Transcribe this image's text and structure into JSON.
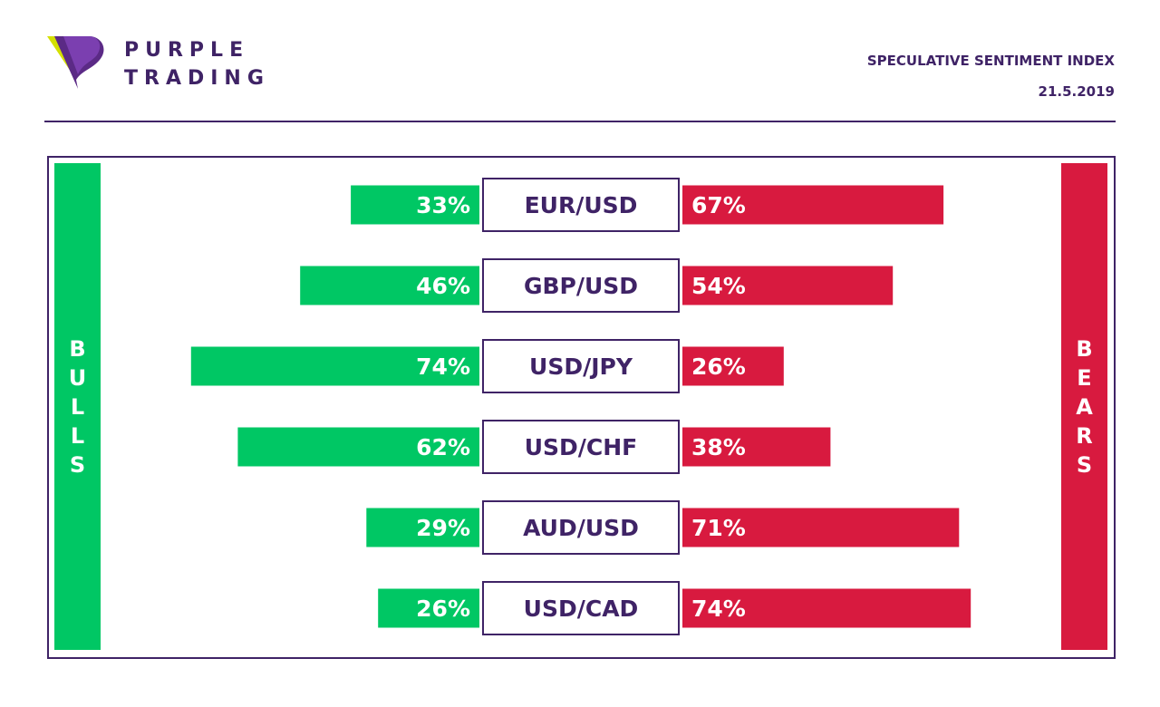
{
  "header": {
    "brand_line1": "PURPLE",
    "brand_line2": "TRADING",
    "title": "SPECULATIVE SENTIMENT INDEX",
    "date": "21.5.2019"
  },
  "side_labels": {
    "left": "BULLS",
    "right": "BEARS"
  },
  "colors": {
    "brand_purple": "#3f2366",
    "bulls_green": "#00c764",
    "bears_red": "#d81a3f",
    "logo_lime": "#d4e000"
  },
  "chart_data": {
    "type": "bar",
    "categories": [
      "EUR/USD",
      "GBP/USD",
      "USD/JPY",
      "USD/CHF",
      "AUD/USD",
      "USD/CAD"
    ],
    "series": [
      {
        "name": "BULLS",
        "values": [
          33,
          46,
          74,
          62,
          29,
          26
        ],
        "labels": [
          "33%",
          "46%",
          "74%",
          "62%",
          "29%",
          "26%"
        ]
      },
      {
        "name": "BEARS",
        "values": [
          67,
          54,
          26,
          38,
          71,
          74
        ],
        "labels": [
          "67%",
          "54%",
          "26%",
          "38%",
          "71%",
          "74%"
        ]
      }
    ],
    "unit": "%"
  }
}
